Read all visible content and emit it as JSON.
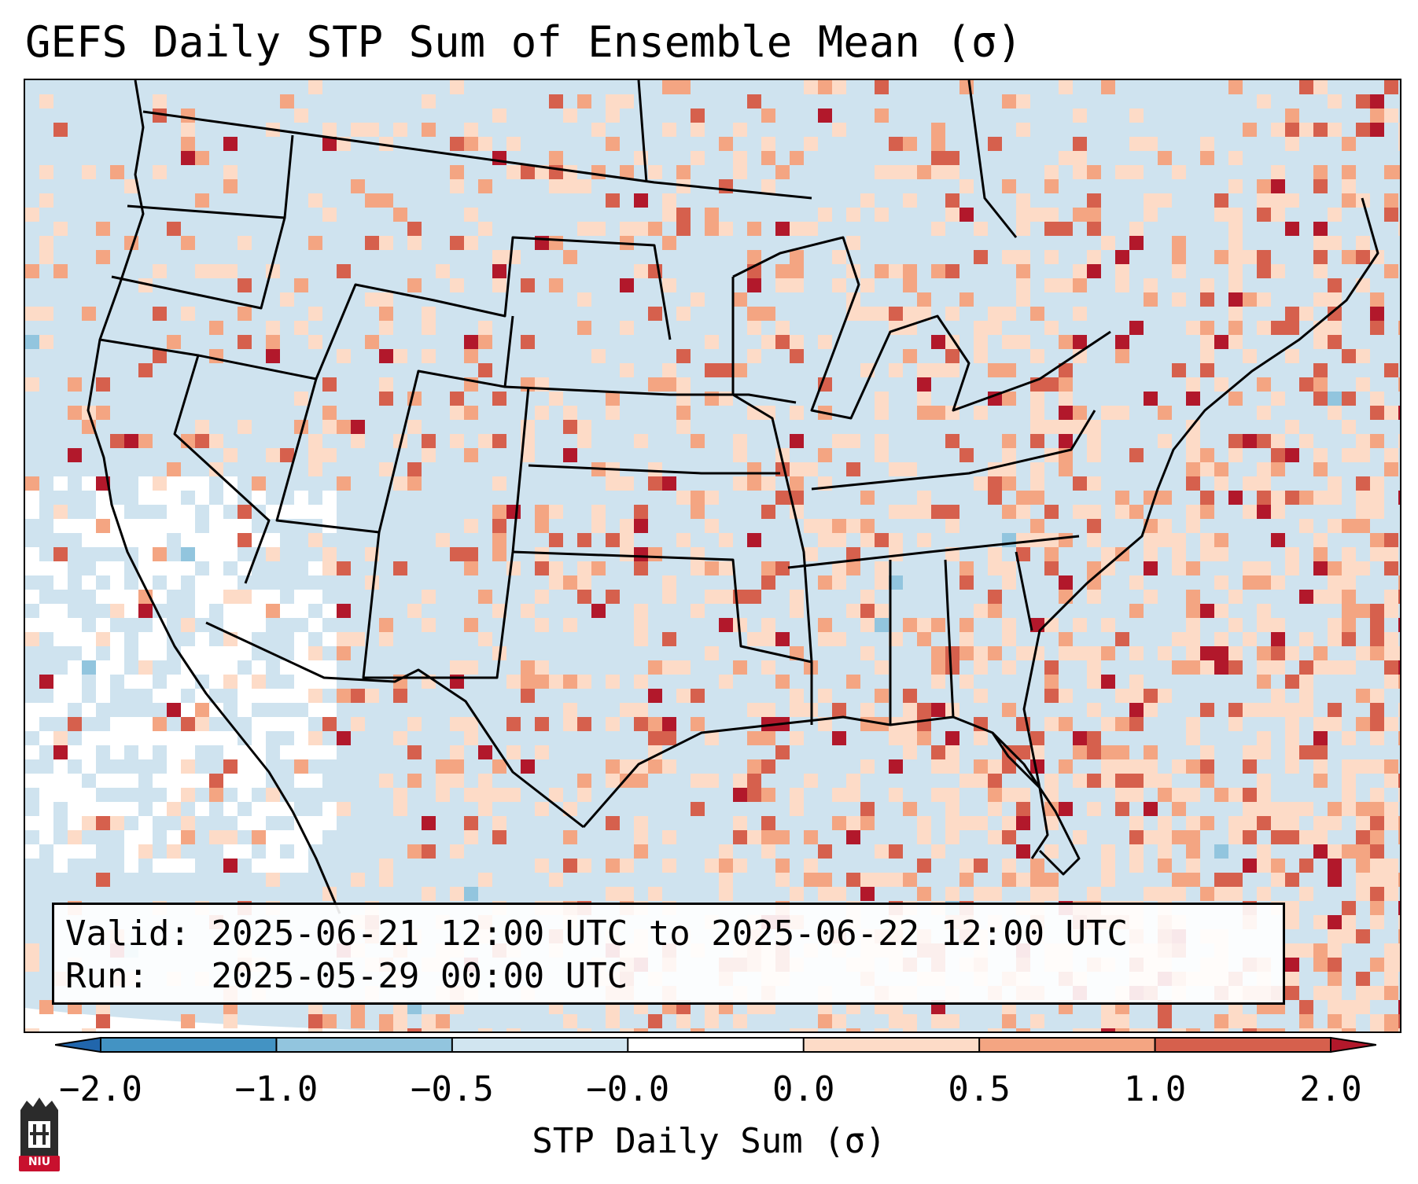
{
  "title": "GEFS Daily STP Sum of Ensemble Mean (σ)",
  "map": {
    "region": "Continental United States",
    "boundaries": [
      "coastlines",
      "state borders",
      "national borders"
    ],
    "field_levels": [
      {
        "name": "below -2.0",
        "color": "#2166ac"
      },
      {
        "name": "-2.0 to -1.0",
        "color": "#4393c3"
      },
      {
        "name": "-1.0 to -0.5",
        "color": "#92c5de"
      },
      {
        "name": "-0.5 to -0.0",
        "color": "#d1e5f0"
      },
      {
        "name": "-0.0 to 0.0",
        "color": "#ffffff"
      },
      {
        "name": "0.0 to 0.5",
        "color": "#fddbc7"
      },
      {
        "name": "0.5 to 1.0",
        "color": "#f4a582"
      },
      {
        "name": "1.0 to 2.0",
        "color": "#d6604d"
      },
      {
        "name": "above 2.0",
        "color": "#b2182b"
      }
    ]
  },
  "info": {
    "valid_label": "Valid:",
    "valid_value": "2025-06-21 12:00 UTC to 2025-06-22 12:00 UTC",
    "run_label": "Run:",
    "run_value": "2025-05-29 00:00 UTC"
  },
  "colorbar": {
    "title": "STP Daily Sum (σ)",
    "ticks": [
      "−2.0",
      "−1.0",
      "−0.5",
      "−0.0",
      "0.0",
      "0.5",
      "1.0",
      "2.0"
    ],
    "colors": [
      "#4393c3",
      "#92c5de",
      "#d1e5f0",
      "#ffffff",
      "#fddbc7",
      "#f4a582",
      "#d6604d"
    ],
    "extend_low_color": "#2166ac",
    "extend_high_color": "#b2182b"
  },
  "logo": {
    "text": "NIU",
    "color": "#c8102e"
  }
}
